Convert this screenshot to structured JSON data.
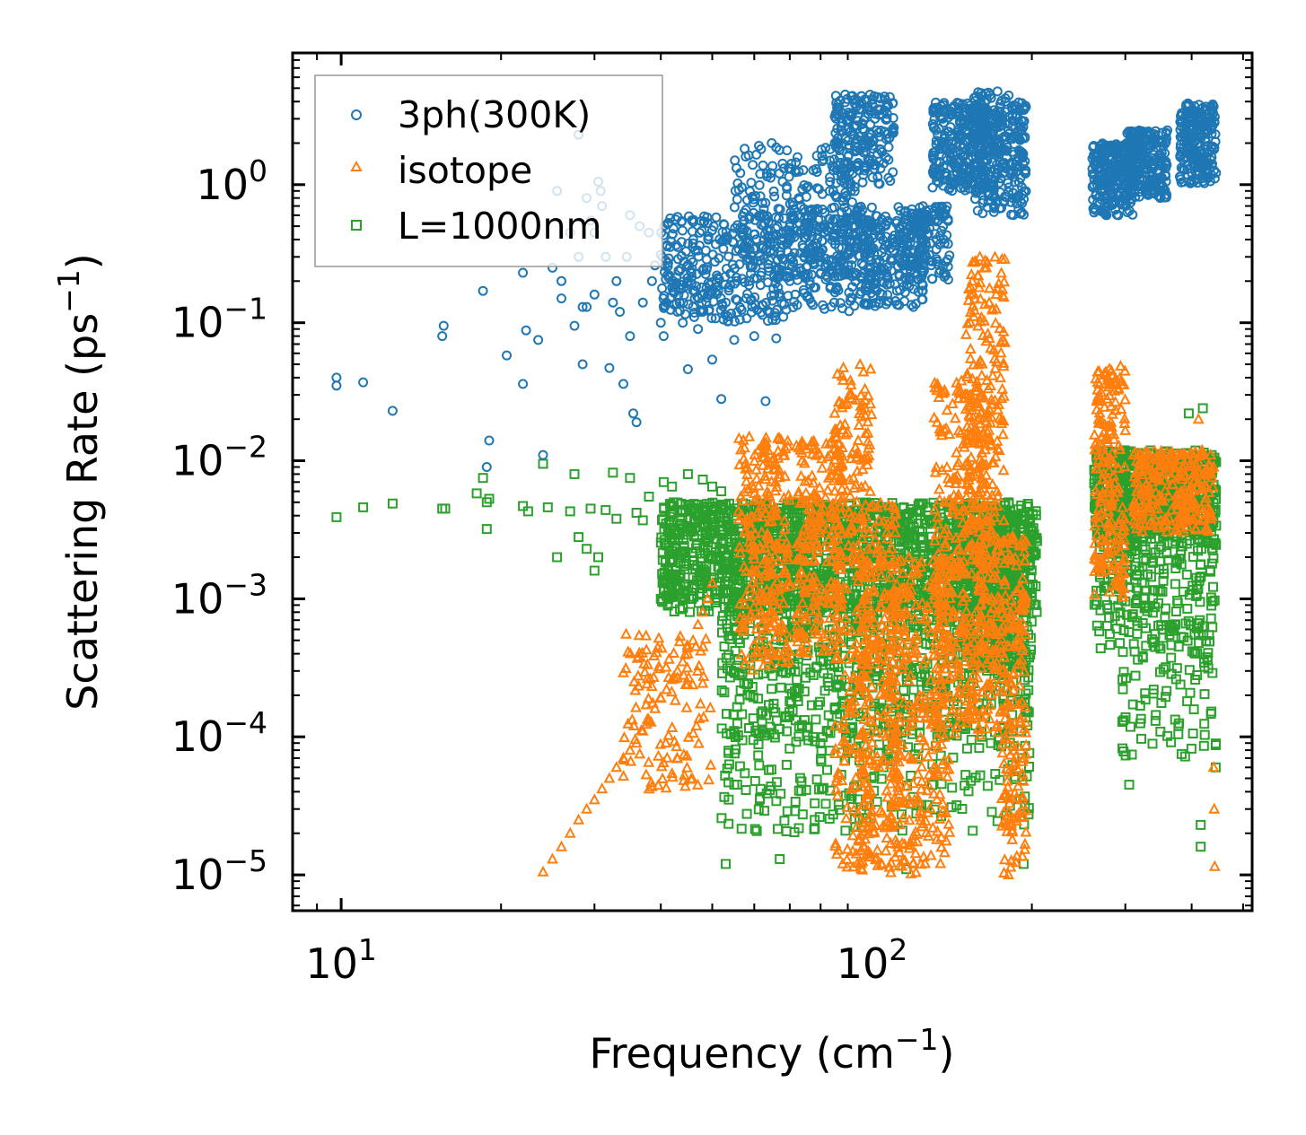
{
  "chart_data": {
    "type": "scatter",
    "xscale": "log",
    "yscale": "log",
    "xlim": [
      8.1,
      520
    ],
    "ylim": [
      5.5e-06,
      9
    ],
    "xlabel": {
      "base": "Frequency (cm",
      "sup": "−1",
      "end": ")"
    },
    "ylabel": {
      "base": "Scattering Rate (ps",
      "sup": "−1",
      "end": ")"
    },
    "x_ticks": [
      {
        "value": 10,
        "base": "10",
        "exp": "1"
      },
      {
        "value": 100,
        "base": "10",
        "exp": "2"
      }
    ],
    "y_ticks": [
      {
        "value": 1,
        "base": "10",
        "exp": "0"
      },
      {
        "value": 0.1,
        "base": "10",
        "exp": "−1"
      },
      {
        "value": 0.01,
        "base": "10",
        "exp": "−2"
      },
      {
        "value": 0.001,
        "base": "10",
        "exp": "−3"
      },
      {
        "value": 0.0001,
        "base": "10",
        "exp": "−4"
      },
      {
        "value": 1e-05,
        "base": "10",
        "exp": "−5"
      }
    ],
    "legend_position": "upper-left",
    "series": [
      {
        "name": "3ph(300K)",
        "marker": "circle",
        "color": "#1f77b4",
        "points": [
          [
            9.8,
            0.04
          ],
          [
            9.8,
            0.035
          ],
          [
            11,
            0.037
          ],
          [
            12.5,
            0.023
          ],
          [
            15.5,
            0.08
          ],
          [
            15.6,
            0.095
          ],
          [
            18.5,
            0.17
          ],
          [
            18.8,
            0.009
          ],
          [
            19,
            0.014
          ],
          [
            20.5,
            0.058
          ],
          [
            22,
            0.23
          ],
          [
            22,
            0.036
          ],
          [
            22.3,
            0.088
          ],
          [
            23.5,
            0.075
          ],
          [
            24,
            0.011
          ],
          [
            25,
            0.25
          ],
          [
            25.5,
            0.9
          ],
          [
            26,
            0.2
          ],
          [
            26,
            0.15
          ],
          [
            27,
            0.45
          ],
          [
            27.5,
            0.095
          ],
          [
            28,
            2.3
          ],
          [
            28,
            0.3
          ],
          [
            28.5,
            0.13
          ],
          [
            28.5,
            0.05
          ],
          [
            29,
            0.8
          ],
          [
            29,
            0.13
          ],
          [
            29.5,
            0.55
          ],
          [
            30,
            0.45
          ],
          [
            30,
            0.16
          ],
          [
            30.5,
            1.05
          ],
          [
            30.8,
            0.9
          ],
          [
            31,
            0.7
          ],
          [
            31.5,
            0.3
          ],
          [
            32,
            0.047
          ],
          [
            32.5,
            0.14
          ],
          [
            33,
            0.2
          ],
          [
            33.5,
            0.12
          ],
          [
            34,
            0.036
          ],
          [
            34.5,
            0.3
          ],
          [
            35,
            0.08
          ],
          [
            35,
            0.6
          ],
          [
            35.5,
            0.022
          ],
          [
            36,
            0.019
          ],
          [
            36.5,
            0.5
          ],
          [
            37,
            0.14
          ],
          [
            38,
            0.45
          ],
          [
            38.5,
            0.2
          ],
          [
            39,
            0.26
          ],
          [
            40,
            0.1
          ],
          [
            40.5,
            0.08
          ],
          [
            41,
            0.14
          ],
          [
            42,
            0.18
          ],
          [
            43,
            0.12
          ],
          [
            44,
            0.1
          ],
          [
            45,
            0.046
          ],
          [
            46,
            0.13
          ],
          [
            47,
            0.09
          ],
          [
            48,
            0.12
          ],
          [
            50,
            0.054
          ],
          [
            51,
            0.22
          ],
          [
            52,
            0.028
          ],
          [
            53,
            0.14
          ],
          [
            55,
            0.075
          ],
          [
            58,
            0.15
          ],
          [
            60,
            0.08
          ],
          [
            63,
            0.027
          ],
          [
            66,
            0.077
          ],
          [
            70,
            0.2
          ]
        ],
        "bands": [
          {
            "x": [
              40,
              70
            ],
            "y": [
              0.1,
              0.6
            ],
            "n": 320
          },
          {
            "x": [
              55,
              95
            ],
            "y": [
              0.2,
              2.0
            ],
            "n": 260
          },
          {
            "x": [
              70,
              100
            ],
            "y": [
              0.12,
              0.7
            ],
            "n": 220
          },
          {
            "x": [
              85,
              110
            ],
            "y": [
              1.0,
              4.5
            ],
            "n": 200
          },
          {
            "x": [
              95,
              125
            ],
            "y": [
              0.13,
              0.6
            ],
            "n": 200
          },
          {
            "x": [
              112,
              140
            ],
            "y": [
              0.2,
              0.7
            ],
            "n": 160
          },
          {
            "x": [
              130,
              165
            ],
            "y": [
              0.9,
              4.0
            ],
            "n": 260
          },
          {
            "x": [
              155,
              195
            ],
            "y": [
              0.6,
              4.8
            ],
            "n": 320
          },
          {
            "x": [
              260,
              310
            ],
            "y": [
              0.6,
              2.0
            ],
            "n": 240
          },
          {
            "x": [
              300,
              360
            ],
            "y": [
              0.8,
              2.5
            ],
            "n": 240
          },
          {
            "x": [
              380,
              445
            ],
            "y": [
              1.0,
              4.0
            ],
            "n": 220
          }
        ]
      },
      {
        "name": "isotope",
        "marker": "triangle",
        "color": "#ff7f0e",
        "points": [
          [
            24,
            1.05e-05
          ],
          [
            25,
            1.3e-05
          ],
          [
            26,
            1.6e-05
          ],
          [
            27,
            2e-05
          ],
          [
            28,
            2.5e-05
          ],
          [
            29,
            3e-05
          ],
          [
            30,
            3.5e-05
          ],
          [
            31,
            4.2e-05
          ],
          [
            32,
            5e-05
          ],
          [
            33,
            6e-05
          ],
          [
            34,
            7e-05
          ],
          [
            35,
            8e-05
          ],
          [
            36,
            9e-05
          ],
          [
            37,
            0.00011
          ],
          [
            38,
            0.00013
          ],
          [
            39,
            0.00016
          ],
          [
            40,
            0.00019
          ],
          [
            41,
            0.00022
          ],
          [
            42,
            0.00026
          ],
          [
            43,
            0.0003
          ],
          [
            44,
            0.00035
          ],
          [
            45,
            0.0004
          ],
          [
            46,
            0.0005
          ],
          [
            47,
            0.00065
          ],
          [
            48,
            0.0008
          ],
          [
            49,
            0.001
          ],
          [
            50,
            0.0013
          ],
          [
            442,
            1.15e-05
          ],
          [
            441,
            3e-05
          ],
          [
            440,
            6e-05
          ],
          [
            412,
            0.02
          ],
          [
            440,
            0.009
          ]
        ],
        "bands": [
          {
            "x": [
              34,
              50
            ],
            "y": [
              4e-05,
              0.0006
            ],
            "n": 120
          },
          {
            "x": [
              56,
              70
            ],
            "y": [
              0.0003,
              0.015
            ],
            "n": 260
          },
          {
            "x": [
              72,
              88
            ],
            "y": [
              0.0004,
              0.014
            ],
            "n": 220
          },
          {
            "x": [
              85,
              100
            ],
            "y": [
              1e-05,
              0.05
            ],
            "n": 280
          },
          {
            "x": [
              95,
              112
            ],
            "y": [
              1e-05,
              0.005
            ],
            "n": 220
          },
          {
            "x": [
              108,
              140
            ],
            "y": [
              1e-05,
              0.002
            ],
            "n": 320
          },
          {
            "x": [
              130,
              168
            ],
            "y": [
              0.0001,
              0.04
            ],
            "n": 300
          },
          {
            "x": [
              150,
              178
            ],
            "y": [
              0.0001,
              0.3
            ],
            "n": 320
          },
          {
            "x": [
              175,
              195
            ],
            "y": [
              1e-05,
              0.003
            ],
            "n": 180
          },
          {
            "x": [
              262,
              300
            ],
            "y": [
              0.001,
              0.05
            ],
            "n": 200
          },
          {
            "x": [
              310,
              440
            ],
            "y": [
              0.003,
              0.012
            ],
            "n": 260
          }
        ]
      },
      {
        "name": "L=1000nm",
        "marker": "square",
        "color": "#2ca02c",
        "points": [
          [
            9.8,
            0.0039
          ],
          [
            11,
            0.0046
          ],
          [
            12.5,
            0.0049
          ],
          [
            15.5,
            0.0045
          ],
          [
            15.7,
            0.0045
          ],
          [
            18,
            0.0058
          ],
          [
            18.5,
            0.0075
          ],
          [
            18.8,
            0.005
          ],
          [
            18.8,
            0.0032
          ],
          [
            19,
            0.0053
          ],
          [
            22,
            0.0047
          ],
          [
            22.5,
            0.0043
          ],
          [
            24,
            0.0095
          ],
          [
            24.5,
            0.0046
          ],
          [
            25.5,
            0.002
          ],
          [
            27,
            0.0043
          ],
          [
            27.5,
            0.008
          ],
          [
            28,
            0.0028
          ],
          [
            29,
            0.0023
          ],
          [
            29.5,
            0.0045
          ],
          [
            30,
            0.0016
          ],
          [
            30.5,
            0.002
          ],
          [
            31.5,
            0.0044
          ],
          [
            32.5,
            0.0082
          ],
          [
            33,
            0.0038
          ],
          [
            35,
            0.0075
          ],
          [
            36,
            0.0042
          ],
          [
            37,
            0.0037
          ],
          [
            38,
            0.0055
          ],
          [
            40,
            0.001
          ],
          [
            40.5,
            0.007
          ],
          [
            42,
            0.0065
          ],
          [
            45,
            0.008
          ],
          [
            46,
            0.0012
          ],
          [
            48,
            0.0073
          ],
          [
            50,
            0.0065
          ],
          [
            52,
            0.006
          ],
          [
            55,
            4.5e-05
          ],
          [
            53,
            1.2e-05
          ],
          [
            67,
            1.3e-05
          ],
          [
            78,
            2.5e-05
          ],
          [
            78,
            3.3e-05
          ],
          [
            95,
            0.00014
          ],
          [
            116,
            1.1e-05
          ],
          [
            193,
            1.2e-05
          ],
          [
            305,
            4.5e-05
          ],
          [
            416,
            2.3e-05
          ],
          [
            416,
            1.6e-05
          ],
          [
            444,
            8.7e-05
          ],
          [
            444,
            6e-05
          ],
          [
            420,
            0.024
          ],
          [
            395,
            0.022
          ]
        ],
        "bands": [
          {
            "x": [
              40,
              205
            ],
            "y": [
              0.0008,
              0.005
            ],
            "n": 1700
          },
          {
            "x": [
              52,
              200
            ],
            "y": [
              0.0001,
              0.001
            ],
            "n": 700
          },
          {
            "x": [
              52,
              200
            ],
            "y": [
              2e-05,
              0.00012
            ],
            "n": 220
          },
          {
            "x": [
              150,
              195
            ],
            "y": [
              0.0003,
              0.004
            ],
            "n": 300
          },
          {
            "x": [
              262,
              445
            ],
            "y": [
              0.0025,
              0.012
            ],
            "n": 700
          },
          {
            "x": [
              262,
              445
            ],
            "y": [
              0.0004,
              0.0025
            ],
            "n": 220
          },
          {
            "x": [
              295,
              445
            ],
            "y": [
              7e-05,
              0.0004
            ],
            "n": 70
          }
        ]
      }
    ]
  }
}
